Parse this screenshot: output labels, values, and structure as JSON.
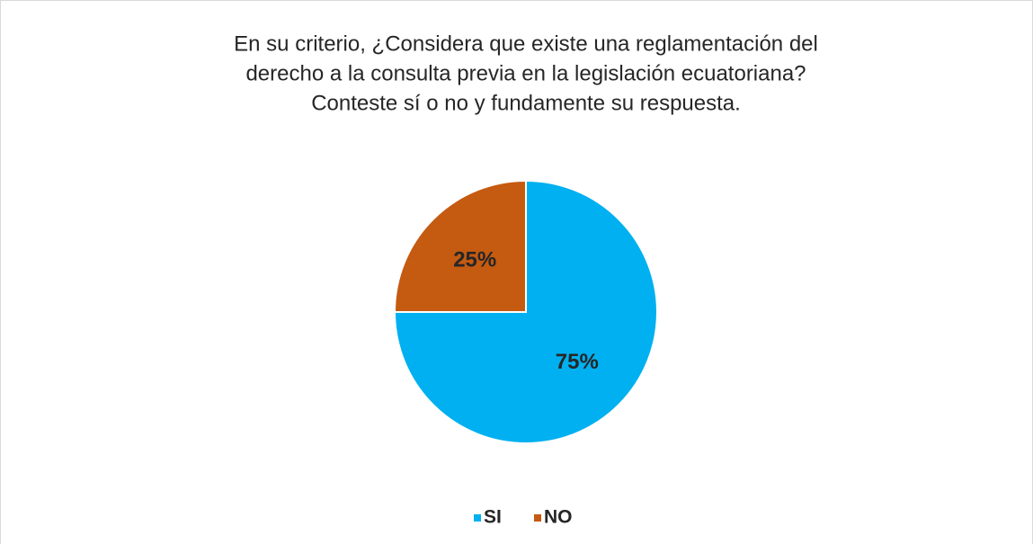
{
  "chart_data": {
    "type": "pie",
    "title": [
      "En su criterio, ¿Considera que existe una reglamentación del",
      "derecho a la consulta previa en la legislación ecuatoriana?",
      "Conteste sí o no y fundamente su respuesta."
    ],
    "categories": [
      "SI",
      "NO"
    ],
    "values": [
      75,
      25
    ],
    "value_labels": [
      "75%",
      "25%"
    ],
    "colors": [
      "#00b0f0",
      "#c55a11"
    ],
    "legend": "bottom"
  }
}
